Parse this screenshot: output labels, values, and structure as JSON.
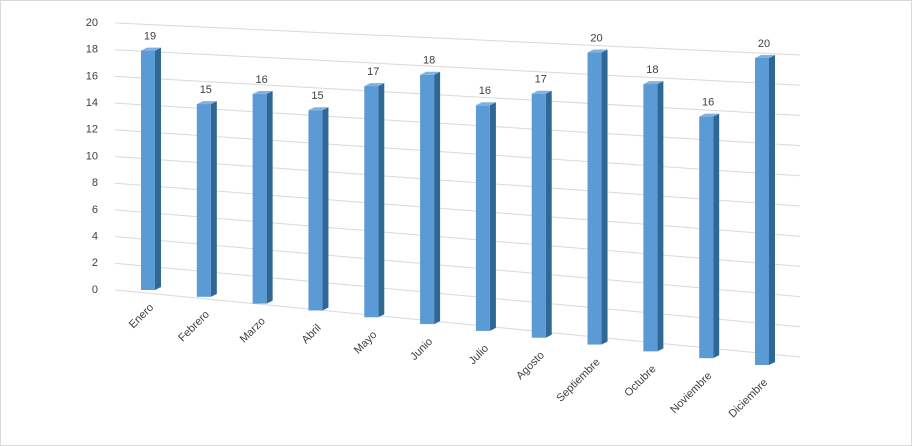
{
  "chart_data": {
    "type": "bar3d",
    "categories": [
      "Enero",
      "Febrero",
      "Marzo",
      "Abril",
      "Mayo",
      "Junio",
      "Julio",
      "Agosto",
      "Septiembre",
      "Octubre",
      "Noviembre",
      "Diciembre"
    ],
    "values": [
      19,
      15,
      16,
      15,
      17,
      18,
      16,
      17,
      20,
      18,
      16,
      20
    ],
    "color": "#5b9bd5",
    "ylim": [
      0,
      20
    ],
    "yticks": [
      0,
      2,
      4,
      6,
      8,
      10,
      12,
      14,
      16,
      18,
      20
    ],
    "grid": true
  }
}
